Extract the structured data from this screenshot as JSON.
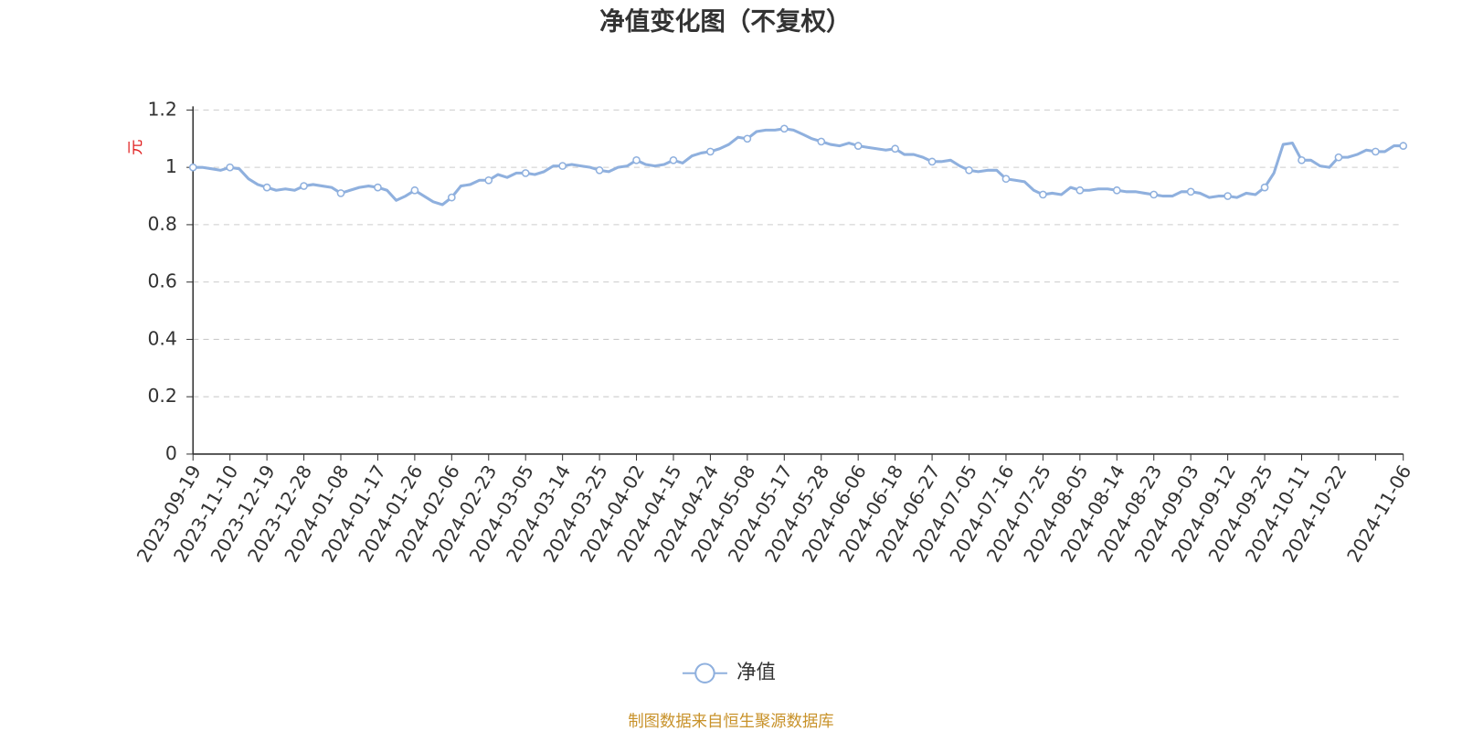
{
  "chart_data": {
    "type": "line",
    "title": "净值变化图（不复权）",
    "y_label": "元",
    "source": "制图数据来自恒生聚源数据库",
    "categories": [
      "2023-09-19",
      null,
      null,
      null,
      "2023-11-10",
      null,
      null,
      null,
      "2023-12-19",
      null,
      null,
      null,
      "2023-12-28",
      null,
      null,
      null,
      "2024-01-08",
      null,
      null,
      null,
      "2024-01-17",
      null,
      null,
      null,
      "2024-01-26",
      null,
      null,
      null,
      "2024-02-06",
      null,
      null,
      null,
      "2024-02-23",
      null,
      null,
      null,
      "2024-03-05",
      null,
      null,
      null,
      "2024-03-14",
      null,
      null,
      null,
      "2024-03-25",
      null,
      null,
      null,
      "2024-04-02",
      null,
      null,
      null,
      "2024-04-15",
      null,
      null,
      null,
      "2024-04-24",
      null,
      null,
      null,
      "2024-05-08",
      null,
      null,
      null,
      "2024-05-17",
      null,
      null,
      null,
      "2024-05-28",
      null,
      null,
      null,
      "2024-06-06",
      null,
      null,
      null,
      "2024-06-18",
      null,
      null,
      null,
      "2024-06-27",
      null,
      null,
      null,
      "2024-07-05",
      null,
      null,
      null,
      "2024-07-16",
      null,
      null,
      null,
      "2024-07-25",
      null,
      null,
      null,
      "2024-08-05",
      null,
      null,
      null,
      "2024-08-14",
      null,
      null,
      null,
      "2024-08-23",
      null,
      null,
      null,
      "2024-09-03",
      null,
      null,
      null,
      "2024-09-12",
      null,
      null,
      null,
      "2024-09-25",
      null,
      null,
      null,
      "2024-10-11",
      null,
      null,
      null,
      "2024-10-22",
      null,
      null,
      null,
      null,
      null,
      null,
      "2024-11-06"
    ],
    "series": [
      {
        "name": "净值",
        "color": "#8fb0de",
        "values": [
          1.0,
          1.0,
          0.995,
          0.99,
          1.0,
          0.995,
          0.96,
          0.94,
          0.93,
          0.92,
          0.925,
          0.92,
          0.935,
          0.94,
          0.935,
          0.93,
          0.91,
          0.92,
          0.93,
          0.935,
          0.93,
          0.92,
          0.885,
          0.9,
          0.92,
          0.9,
          0.88,
          0.87,
          0.895,
          0.935,
          0.94,
          0.955,
          0.955,
          0.975,
          0.965,
          0.98,
          0.98,
          0.975,
          0.985,
          1.005,
          1.005,
          1.01,
          1.005,
          1.0,
          0.99,
          0.985,
          1.0,
          1.005,
          1.025,
          1.01,
          1.005,
          1.01,
          1.025,
          1.015,
          1.04,
          1.05,
          1.055,
          1.065,
          1.08,
          1.105,
          1.1,
          1.125,
          1.13,
          1.13,
          1.135,
          1.13,
          1.115,
          1.1,
          1.09,
          1.08,
          1.075,
          1.085,
          1.075,
          1.07,
          1.065,
          1.06,
          1.065,
          1.045,
          1.045,
          1.035,
          1.02,
          1.02,
          1.025,
          1.005,
          0.99,
          0.985,
          0.99,
          0.99,
          0.96,
          0.955,
          0.95,
          0.92,
          0.905,
          0.91,
          0.905,
          0.93,
          0.92,
          0.92,
          0.925,
          0.925,
          0.92,
          0.915,
          0.915,
          0.91,
          0.905,
          0.9,
          0.9,
          0.915,
          0.915,
          0.91,
          0.895,
          0.9,
          0.9,
          0.895,
          0.91,
          0.905,
          0.93,
          0.98,
          1.08,
          1.085,
          1.025,
          1.025,
          1.005,
          1.0,
          1.035,
          1.035,
          1.045,
          1.06,
          1.055,
          1.055,
          1.075,
          1.075
        ]
      }
    ],
    "ylim": [
      0,
      1.2
    ],
    "yticks": [
      0,
      0.2,
      0.4,
      0.6,
      0.8,
      1,
      1.2
    ],
    "grid": true
  }
}
